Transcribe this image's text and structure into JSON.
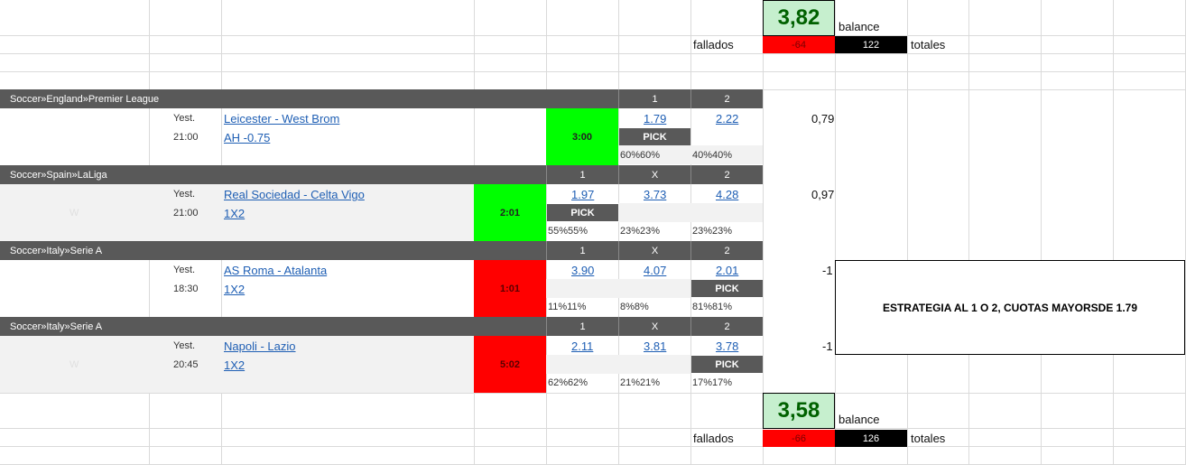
{
  "summary_top": {
    "balance_value": "3,82",
    "balance_label": "balance",
    "fallados_label": "fallados",
    "fallados_value": "-64",
    "totales_value": "122",
    "totales_label": "totales"
  },
  "summary_bottom": {
    "balance_value": "3,58",
    "balance_label": "balance",
    "fallados_label": "fallados",
    "fallados_value": "-66",
    "totales_value": "126",
    "totales_label": "totales"
  },
  "matches": [
    {
      "league": "Soccer»England»Premier League",
      "cols": [
        "1",
        "2"
      ],
      "day": "Yest.",
      "time": "21:00",
      "teams": "Leicester - West Brom",
      "market": "AH -0.75",
      "score": "3:00",
      "odds": [
        "1.79",
        "2.22"
      ],
      "pick": "PICK",
      "pcts": [
        "60%60%",
        "40%40%"
      ],
      "result": "0,79",
      "watermark": ""
    },
    {
      "league": "Soccer»Spain»LaLiga",
      "cols": [
        "1",
        "X",
        "2"
      ],
      "day": "Yest.",
      "time": "21:00",
      "teams": "Real Sociedad - Celta Vigo",
      "market": "1X2",
      "score": "2:01",
      "odds": [
        "1.97",
        "3.73",
        "4.28"
      ],
      "pick": "PICK",
      "pcts": [
        "55%55%",
        "23%23%",
        "23%23%"
      ],
      "result": "0,97",
      "watermark": "W"
    },
    {
      "league": "Soccer»Italy»Serie A",
      "cols": [
        "1",
        "X",
        "2"
      ],
      "day": "Yest.",
      "time": "18:30",
      "teams": "AS Roma - Atalanta",
      "market": "1X2",
      "score": "1:01",
      "odds": [
        "3.90",
        "4.07",
        "2.01"
      ],
      "pick": "PICK",
      "pcts": [
        "11%11%",
        "8%8%",
        "81%81%"
      ],
      "result": "-1",
      "watermark": ""
    },
    {
      "league": "Soccer»Italy»Serie A",
      "cols": [
        "1",
        "X",
        "2"
      ],
      "day": "Yest.",
      "time": "20:45",
      "teams": "Napoli - Lazio",
      "market": "1X2",
      "score": "5:02",
      "odds": [
        "2.11",
        "3.81",
        "3.78"
      ],
      "pick": "PICK",
      "pcts": [
        "62%62%",
        "21%21%",
        "17%17%"
      ],
      "result": "-1",
      "watermark": "W"
    }
  ],
  "strategy_note": "ESTRATEGIA AL 1 O 2, CUOTAS MAYORSDE 1.79",
  "colors": {
    "header": "#595959",
    "win": "#00ff00",
    "loss": "#ff0000",
    "balance_bg": "#c6efce",
    "balance_fg": "#006100",
    "link": "#1f5fb4"
  }
}
